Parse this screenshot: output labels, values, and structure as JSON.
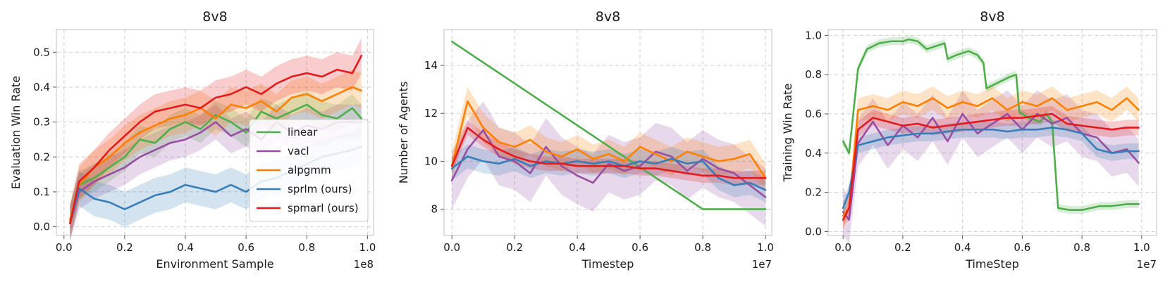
{
  "chart_data": [
    {
      "type": "line",
      "title": "8v8",
      "xlabel": "Environment Sample",
      "ylabel": "Evaluation Win Rate",
      "x_offset_label": "1e8",
      "xlim": [
        -0.025,
        1.02
      ],
      "ylim": [
        -0.025,
        0.565
      ],
      "xticks": [
        0.0,
        0.2,
        0.4,
        0.6,
        0.8,
        1.0
      ],
      "xtick_labels": [
        "0.0",
        "0.2",
        "0.4",
        "0.6",
        "0.8",
        "1.0"
      ],
      "yticks": [
        0.0,
        0.1,
        0.2,
        0.3,
        0.4,
        0.5
      ],
      "ytick_labels": [
        "0.0",
        "0.1",
        "0.2",
        "0.3",
        "0.4",
        "0.5"
      ],
      "legend": "right",
      "series": [
        {
          "name": "linear",
          "color": "#4daf4a",
          "x": [
            0.02,
            0.05,
            0.1,
            0.15,
            0.2,
            0.25,
            0.3,
            0.35,
            0.4,
            0.45,
            0.5,
            0.55,
            0.6,
            0.65,
            0.7,
            0.75,
            0.8,
            0.85,
            0.9,
            0.95,
            0.98
          ],
          "y": [
            0.02,
            0.12,
            0.14,
            0.17,
            0.2,
            0.25,
            0.24,
            0.28,
            0.3,
            0.28,
            0.32,
            0.3,
            0.27,
            0.33,
            0.31,
            0.33,
            0.35,
            0.32,
            0.31,
            0.34,
            0.31
          ],
          "band": 0.04
        },
        {
          "name": "vacl",
          "color": "#984ea3",
          "x": [
            0.02,
            0.05,
            0.1,
            0.15,
            0.2,
            0.25,
            0.3,
            0.35,
            0.4,
            0.45,
            0.5,
            0.55,
            0.6,
            0.65,
            0.7,
            0.75,
            0.8,
            0.85,
            0.9,
            0.95,
            0.98
          ],
          "y": [
            0.01,
            0.1,
            0.13,
            0.15,
            0.17,
            0.2,
            0.22,
            0.24,
            0.25,
            0.27,
            0.3,
            0.26,
            0.28,
            0.25,
            0.3,
            0.27,
            0.29,
            0.28,
            0.3,
            0.3,
            0.3
          ],
          "band": 0.05
        },
        {
          "name": "alpgmm",
          "color": "#ff7f00",
          "x": [
            0.02,
            0.05,
            0.1,
            0.15,
            0.2,
            0.25,
            0.3,
            0.35,
            0.4,
            0.45,
            0.5,
            0.55,
            0.6,
            0.65,
            0.7,
            0.75,
            0.8,
            0.85,
            0.9,
            0.95,
            0.98
          ],
          "y": [
            0.02,
            0.12,
            0.17,
            0.2,
            0.24,
            0.27,
            0.29,
            0.31,
            0.32,
            0.34,
            0.31,
            0.35,
            0.34,
            0.36,
            0.33,
            0.37,
            0.38,
            0.36,
            0.38,
            0.4,
            0.39
          ],
          "band": 0.05
        },
        {
          "name": "sprlm (ours)",
          "color": "#377eb8",
          "x": [
            0.02,
            0.05,
            0.1,
            0.15,
            0.2,
            0.25,
            0.3,
            0.35,
            0.4,
            0.45,
            0.5,
            0.55,
            0.6,
            0.65,
            0.7,
            0.75,
            0.8,
            0.85,
            0.9,
            0.95,
            0.98
          ],
          "y": [
            0.01,
            0.11,
            0.08,
            0.07,
            0.05,
            0.07,
            0.09,
            0.1,
            0.12,
            0.11,
            0.1,
            0.12,
            0.1,
            0.13,
            0.14,
            0.16,
            0.18,
            0.2,
            0.21,
            0.22,
            0.23
          ],
          "band": 0.05
        },
        {
          "name": "spmarl (ours)",
          "color": "#e41a1c",
          "x": [
            0.02,
            0.05,
            0.1,
            0.15,
            0.2,
            0.25,
            0.3,
            0.35,
            0.4,
            0.45,
            0.5,
            0.55,
            0.6,
            0.65,
            0.7,
            0.75,
            0.8,
            0.85,
            0.9,
            0.95,
            0.98
          ],
          "y": [
            0.01,
            0.13,
            0.17,
            0.22,
            0.26,
            0.3,
            0.33,
            0.34,
            0.35,
            0.34,
            0.37,
            0.38,
            0.4,
            0.38,
            0.41,
            0.43,
            0.44,
            0.43,
            0.45,
            0.44,
            0.49
          ],
          "band": 0.05
        }
      ]
    },
    {
      "type": "line",
      "title": "8v8",
      "xlabel": "Timestep",
      "ylabel": "Number of Agents",
      "x_offset_label": "1e7",
      "xlim": [
        -0.025,
        1.02
      ],
      "ylim": [
        6.9,
        15.5
      ],
      "xticks": [
        0.0,
        0.2,
        0.4,
        0.6,
        0.8,
        1.0
      ],
      "xtick_labels": [
        "0.0",
        "0.2",
        "0.4",
        "0.6",
        "0.8",
        "1.0"
      ],
      "yticks": [
        8,
        10,
        12,
        14
      ],
      "ytick_labels": [
        "8",
        "10",
        "12",
        "14"
      ],
      "series": [
        {
          "name": "linear",
          "color": "#4daf4a",
          "x": [
            0.0,
            0.8,
            1.0
          ],
          "y": [
            15.0,
            8.0,
            8.0
          ],
          "band": 0.0
        },
        {
          "name": "vacl",
          "color": "#984ea3",
          "x": [
            0.0,
            0.05,
            0.1,
            0.15,
            0.2,
            0.25,
            0.3,
            0.35,
            0.4,
            0.45,
            0.5,
            0.55,
            0.6,
            0.65,
            0.7,
            0.75,
            0.8,
            0.85,
            0.9,
            0.95,
            1.0
          ],
          "y": [
            9.2,
            10.5,
            11.3,
            10.2,
            10.0,
            9.5,
            10.6,
            9.8,
            9.4,
            9.1,
            9.9,
            9.6,
            9.8,
            10.4,
            10.2,
            9.6,
            10.1,
            9.7,
            9.5,
            9.0,
            8.5
          ],
          "band": 1.2
        },
        {
          "name": "alpgmm",
          "color": "#ff7f00",
          "x": [
            0.0,
            0.05,
            0.1,
            0.15,
            0.2,
            0.25,
            0.3,
            0.35,
            0.4,
            0.45,
            0.5,
            0.55,
            0.6,
            0.65,
            0.7,
            0.75,
            0.8,
            0.85,
            0.9,
            0.95,
            1.0
          ],
          "y": [
            9.8,
            12.5,
            11.4,
            10.8,
            10.6,
            10.9,
            10.4,
            10.2,
            10.5,
            10.1,
            10.3,
            10.0,
            10.6,
            10.3,
            10.0,
            10.4,
            10.2,
            10.0,
            10.1,
            10.3,
            9.3
          ],
          "band": 0.6
        },
        {
          "name": "sprlm (ours)",
          "color": "#377eb8",
          "x": [
            0.0,
            0.05,
            0.1,
            0.15,
            0.2,
            0.25,
            0.3,
            0.35,
            0.4,
            0.45,
            0.5,
            0.55,
            0.6,
            0.65,
            0.7,
            0.75,
            0.8,
            0.85,
            0.9,
            0.95,
            1.0
          ],
          "y": [
            9.7,
            10.2,
            10.0,
            9.9,
            10.1,
            9.8,
            10.0,
            9.9,
            10.0,
            9.9,
            10.0,
            9.8,
            10.0,
            9.9,
            10.1,
            9.9,
            10.0,
            9.3,
            9.0,
            9.1,
            8.8
          ],
          "band": 0.5
        },
        {
          "name": "spmarl (ours)",
          "color": "#e41a1c",
          "x": [
            0.0,
            0.05,
            0.1,
            0.15,
            0.2,
            0.25,
            0.3,
            0.35,
            0.4,
            0.45,
            0.5,
            0.55,
            0.6,
            0.65,
            0.7,
            0.75,
            0.8,
            0.85,
            0.9,
            0.95,
            1.0
          ],
          "y": [
            9.8,
            11.4,
            10.9,
            10.5,
            10.2,
            10.0,
            9.9,
            9.9,
            9.8,
            9.8,
            9.8,
            9.8,
            9.7,
            9.7,
            9.6,
            9.5,
            9.4,
            9.4,
            9.3,
            9.3,
            9.3
          ],
          "band": 0.3
        }
      ]
    },
    {
      "type": "line",
      "title": "8v8",
      "xlabel": "TimeStep",
      "ylabel": "Training Win Rate",
      "x_offset_label": "1e7",
      "xlim": [
        -0.05,
        1.05
      ],
      "ylim": [
        -0.02,
        1.03
      ],
      "xticks": [
        0.0,
        0.2,
        0.4,
        0.6,
        0.8,
        1.0
      ],
      "xtick_labels": [
        "0.0",
        "0.2",
        "0.4",
        "0.6",
        "0.8",
        "1.0"
      ],
      "yticks": [
        0.0,
        0.2,
        0.4,
        0.6,
        0.8,
        1.0
      ],
      "ytick_labels": [
        "0.0",
        "0.2",
        "0.4",
        "0.6",
        "0.8",
        "1.0"
      ],
      "series": [
        {
          "name": "linear",
          "color": "#4daf4a",
          "x": [
            0.0,
            0.02,
            0.05,
            0.08,
            0.12,
            0.16,
            0.2,
            0.22,
            0.25,
            0.28,
            0.32,
            0.34,
            0.35,
            0.38,
            0.42,
            0.45,
            0.47,
            0.48,
            0.52,
            0.56,
            0.58,
            0.59,
            0.62,
            0.66,
            0.68,
            0.7,
            0.72,
            0.76,
            0.8,
            0.86,
            0.9,
            0.95,
            0.99
          ],
          "y": [
            0.46,
            0.4,
            0.83,
            0.93,
            0.96,
            0.97,
            0.97,
            0.98,
            0.97,
            0.93,
            0.95,
            0.96,
            0.88,
            0.9,
            0.92,
            0.9,
            0.86,
            0.73,
            0.76,
            0.79,
            0.8,
            0.61,
            0.58,
            0.56,
            0.6,
            0.56,
            0.12,
            0.11,
            0.11,
            0.13,
            0.13,
            0.14,
            0.14
          ],
          "band": 0.02
        },
        {
          "name": "vacl",
          "color": "#984ea3",
          "x": [
            0.0,
            0.02,
            0.05,
            0.1,
            0.15,
            0.2,
            0.25,
            0.3,
            0.35,
            0.4,
            0.45,
            0.5,
            0.55,
            0.6,
            0.65,
            0.7,
            0.75,
            0.8,
            0.85,
            0.9,
            0.95,
            0.99
          ],
          "y": [
            0.1,
            0.06,
            0.45,
            0.56,
            0.44,
            0.54,
            0.48,
            0.58,
            0.46,
            0.6,
            0.5,
            0.55,
            0.6,
            0.52,
            0.6,
            0.55,
            0.58,
            0.5,
            0.48,
            0.4,
            0.42,
            0.35
          ],
          "band": 0.12
        },
        {
          "name": "alpgmm",
          "color": "#ff7f00",
          "x": [
            0.0,
            0.02,
            0.05,
            0.1,
            0.15,
            0.2,
            0.25,
            0.3,
            0.35,
            0.4,
            0.45,
            0.5,
            0.55,
            0.6,
            0.65,
            0.7,
            0.75,
            0.8,
            0.85,
            0.9,
            0.95,
            0.99
          ],
          "y": [
            0.08,
            0.12,
            0.62,
            0.64,
            0.62,
            0.66,
            0.64,
            0.68,
            0.63,
            0.66,
            0.64,
            0.68,
            0.62,
            0.66,
            0.64,
            0.68,
            0.62,
            0.64,
            0.66,
            0.62,
            0.68,
            0.62
          ],
          "band": 0.06
        },
        {
          "name": "sprlm (ours)",
          "color": "#377eb8",
          "x": [
            0.0,
            0.02,
            0.05,
            0.1,
            0.15,
            0.2,
            0.25,
            0.3,
            0.35,
            0.4,
            0.45,
            0.5,
            0.55,
            0.6,
            0.65,
            0.7,
            0.75,
            0.8,
            0.85,
            0.9,
            0.95,
            0.99
          ],
          "y": [
            0.12,
            0.2,
            0.44,
            0.46,
            0.48,
            0.49,
            0.5,
            0.5,
            0.51,
            0.52,
            0.52,
            0.52,
            0.51,
            0.52,
            0.52,
            0.53,
            0.52,
            0.5,
            0.42,
            0.4,
            0.41,
            0.41
          ],
          "band": 0.04
        },
        {
          "name": "spmarl (ours)",
          "color": "#e41a1c",
          "x": [
            0.0,
            0.02,
            0.05,
            0.1,
            0.15,
            0.2,
            0.25,
            0.3,
            0.35,
            0.4,
            0.45,
            0.5,
            0.55,
            0.6,
            0.65,
            0.7,
            0.75,
            0.8,
            0.85,
            0.9,
            0.95,
            0.99
          ],
          "y": [
            0.06,
            0.12,
            0.52,
            0.58,
            0.56,
            0.54,
            0.55,
            0.53,
            0.54,
            0.55,
            0.56,
            0.57,
            0.58,
            0.58,
            0.59,
            0.6,
            0.55,
            0.54,
            0.53,
            0.52,
            0.53,
            0.53
          ],
          "band": 0.04
        }
      ]
    }
  ]
}
